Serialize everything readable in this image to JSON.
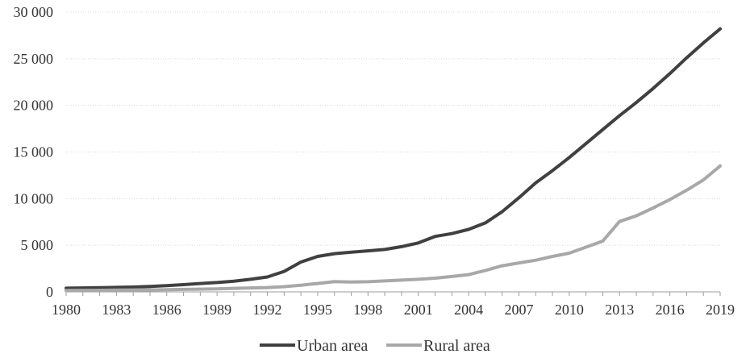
{
  "chart": {
    "background": "#ffffff",
    "axis_color": "#9e9e9e",
    "gridline_color": "#d9d9d9",
    "text_color": "#333333"
  },
  "chart_data": {
    "type": "line",
    "title": "",
    "xlabel": "",
    "ylabel": "",
    "x": [
      1980,
      1981,
      1982,
      1983,
      1984,
      1985,
      1986,
      1987,
      1988,
      1989,
      1990,
      1991,
      1992,
      1993,
      1994,
      1995,
      1996,
      1997,
      1998,
      1999,
      2000,
      2001,
      2002,
      2003,
      2004,
      2005,
      2006,
      2007,
      2008,
      2009,
      2010,
      2011,
      2012,
      2013,
      2014,
      2015,
      2016,
      2017,
      2018,
      2019
    ],
    "series": [
      {
        "name": "Urban area",
        "color": "#404040",
        "values": [
          400,
          420,
          450,
          480,
          520,
          590,
          670,
          780,
          900,
          1000,
          1150,
          1350,
          1600,
          2200,
          3200,
          3800,
          4100,
          4250,
          4400,
          4550,
          4850,
          5250,
          5950,
          6250,
          6700,
          7400,
          8600,
          10100,
          11700,
          13000,
          14400,
          15900,
          17400,
          18900,
          20300,
          21800,
          23400,
          25100,
          26700,
          28200
        ]
      },
      {
        "name": "Rural area",
        "color": "#a8a8a8",
        "values": [
          150,
          160,
          175,
          190,
          205,
          220,
          240,
          265,
          290,
          320,
          380,
          420,
          470,
          560,
          720,
          900,
          1100,
          1060,
          1090,
          1180,
          1260,
          1350,
          1470,
          1650,
          1850,
          2300,
          2800,
          3100,
          3400,
          3800,
          4150,
          4800,
          5450,
          7550,
          8150,
          9000,
          9900,
          10900,
          12000,
          13500
        ]
      }
    ],
    "x_tick_labels": [
      "1980",
      "1983",
      "1986",
      "1989",
      "1992",
      "1995",
      "1998",
      "2001",
      "2004",
      "2007",
      "2010",
      "2013",
      "2016",
      "2019"
    ],
    "y_tick_labels": [
      "0",
      "5 000",
      "10 000",
      "15 000",
      "20 000",
      "25 000",
      "30 000"
    ],
    "ylim": [
      0,
      30000
    ],
    "y_tick_interval": 5000,
    "grid": "horizontal-dotted",
    "legend_position": "bottom-center"
  }
}
